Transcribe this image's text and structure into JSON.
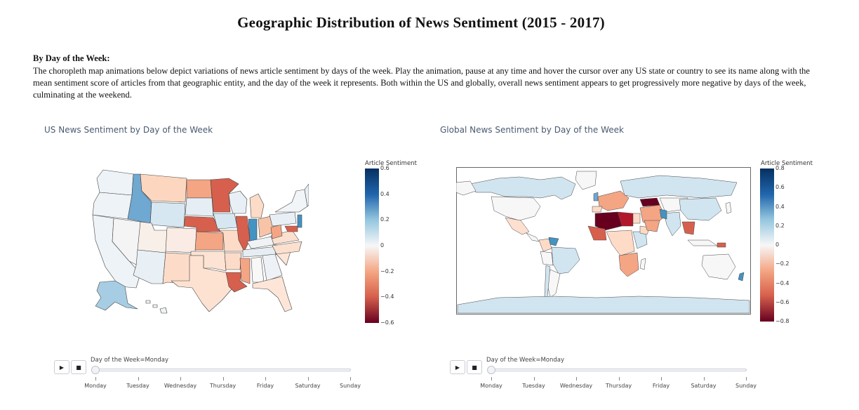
{
  "page": {
    "title": "Geographic Distribution of News Sentiment (2015 - 2017)",
    "section_heading": "By Day of the Week:",
    "section_text": "The choropleth map animations below depict variations of news article sentiment by days of the week. Play the animation, pause at any time and hover the cursor over any US state or country to see its name along with the mean sentiment score of articles from that geographic entity, and the day of the week it represents. Both within the US and globally, overall news sentiment appears to get progressively more negative by days of the week, culminating at the weekend."
  },
  "us_map": {
    "title": "US News Sentiment by Day of the Week",
    "colorbar_title": "Article Sentiment",
    "colorbar_ticks": [
      "0.6",
      "0.4",
      "0.2",
      "0",
      "−0.2",
      "−0.4",
      "−0.6"
    ],
    "colorbar_range": [
      -0.6,
      0.6
    ],
    "slider_label": "Day of the Week=Monday",
    "days": [
      "Monday",
      "Tuesday",
      "Wednesday",
      "Thursday",
      "Friday",
      "Saturday",
      "Sunday"
    ],
    "selected_day_index": 0
  },
  "world_map": {
    "title": "Global News Sentiment by Day of the Week",
    "colorbar_title": "Article Sentiment",
    "colorbar_ticks": [
      "0.8",
      "0.6",
      "0.4",
      "0.2",
      "0",
      "−0.2",
      "−0.4",
      "−0.6",
      "−0.8"
    ],
    "colorbar_range": [
      -0.8,
      0.8
    ],
    "slider_label": "Day of the Week=Monday",
    "days": [
      "Monday",
      "Tuesday",
      "Wednesday",
      "Thursday",
      "Friday",
      "Saturday",
      "Sunday"
    ],
    "selected_day_index": 0
  },
  "controls": {
    "play_icon": "▶",
    "stop_icon": "■"
  },
  "colors": {
    "strong_positive": "#053061",
    "positive": "#4393c3",
    "light_positive": "#d1e5f0",
    "neutral": "#f7f7f7",
    "light_negative": "#fddbc7",
    "negative": "#d6604d",
    "strong_negative": "#67001f",
    "ocean_land_none": "#ffffff"
  }
}
